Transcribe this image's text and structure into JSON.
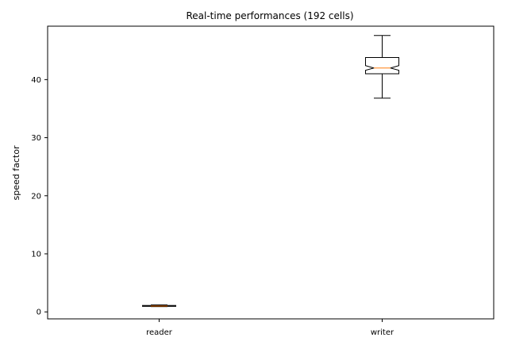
{
  "chart_data": {
    "type": "box",
    "title": "Real-time performances (192 cells)",
    "xlabel": "",
    "ylabel": "speed factor",
    "ylim": [
      -1.2,
      49.2
    ],
    "yticks": [
      0,
      10,
      20,
      30,
      40
    ],
    "notched": true,
    "grid": false,
    "categories": [
      "reader",
      "writer"
    ],
    "boxes": [
      {
        "label": "reader",
        "whisker_low": 0.9,
        "q1": 0.95,
        "notch_low": 0.98,
        "median": 1.0,
        "notch_high": 1.02,
        "q3": 1.1,
        "whisker_high": 1.2
      },
      {
        "label": "writer",
        "whisker_low": 36.8,
        "q1": 41.0,
        "notch_low": 41.6,
        "median": 42.0,
        "notch_high": 42.4,
        "q3": 43.8,
        "whisker_high": 47.6
      }
    ],
    "colors": {
      "box": "#000000",
      "median": "#ff7f0e"
    }
  }
}
